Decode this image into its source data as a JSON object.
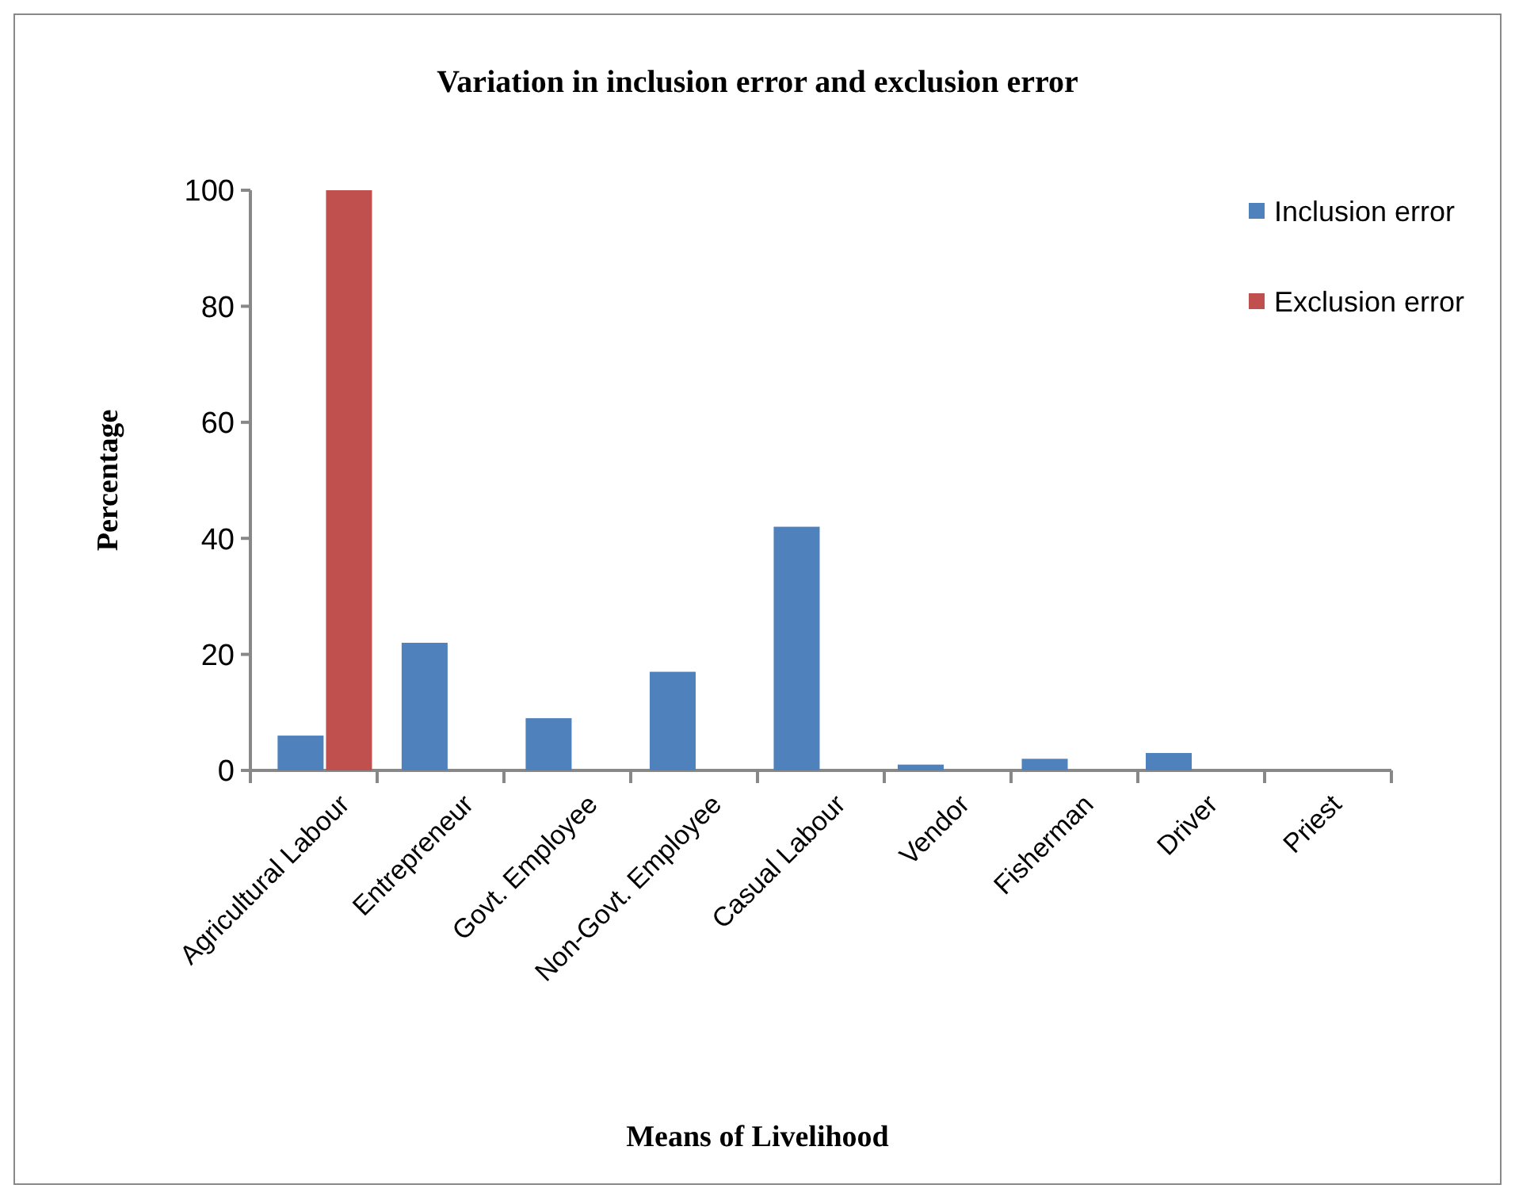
{
  "chart_data": {
    "type": "bar",
    "title": "Variation in inclusion error and exclusion error",
    "xlabel": "Means of Livelihood",
    "ylabel": "Percentage",
    "categories": [
      "Agricultural Labour",
      "Entrepreneur",
      "Govt. Employee",
      "Non-Govt. Employee",
      "Casual Labour",
      "Vendor",
      "Fisherman",
      "Driver",
      "Priest"
    ],
    "series": [
      {
        "name": "Inclusion error",
        "color": "#4f81bd",
        "values": [
          6,
          22,
          9,
          17,
          42,
          1,
          2,
          3,
          0
        ]
      },
      {
        "name": "Exclusion error",
        "color": "#c0504d",
        "values": [
          100,
          0,
          0,
          0,
          0,
          0,
          0,
          0,
          0
        ]
      }
    ],
    "ylim": [
      0,
      100
    ],
    "yticks": [
      0,
      20,
      40,
      60,
      80,
      100
    ],
    "grid": false,
    "legend": "top right"
  }
}
